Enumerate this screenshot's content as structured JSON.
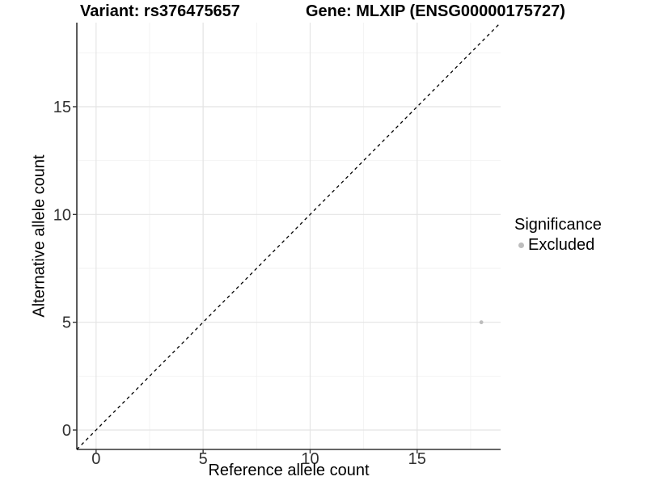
{
  "header": {
    "variant_title": "Variant: rs376475657",
    "gene_title": "Gene: MLXIP (ENSG00000175727)"
  },
  "chart_data": {
    "type": "scatter",
    "title": "Variant: rs376475657 / Gene: MLXIP (ENSG00000175727)",
    "xlabel": "Reference allele count",
    "ylabel": "Alternative allele count",
    "xlim": [
      -0.9,
      18.9
    ],
    "ylim": [
      -0.9,
      18.9
    ],
    "xticks": [
      0,
      5,
      10,
      15
    ],
    "yticks": [
      0,
      5,
      10,
      15
    ],
    "xticks_minor": [
      2.5,
      7.5,
      12.5,
      17.5
    ],
    "yticks_minor": [
      2.5,
      7.5,
      12.5,
      17.5
    ],
    "grid": "major+minor",
    "reference_line": {
      "type": "identity",
      "style": "dashed",
      "color": "#000000"
    },
    "series": [
      {
        "name": "Excluded",
        "color": "#bdbdbd",
        "points": [
          {
            "x": 18,
            "y": 5
          }
        ]
      }
    ],
    "legend": {
      "title": "Significance",
      "position": "right",
      "items": [
        {
          "label": "Excluded",
          "color": "#bdbdbd",
          "marker": "circle"
        }
      ]
    },
    "colors": {
      "background": "#ffffff",
      "grid_major": "#e4e4e4",
      "grid_minor": "#f2f2f2",
      "axis_line": "#333333",
      "tick_text": "#303030",
      "point": "#bdbdbd"
    }
  }
}
